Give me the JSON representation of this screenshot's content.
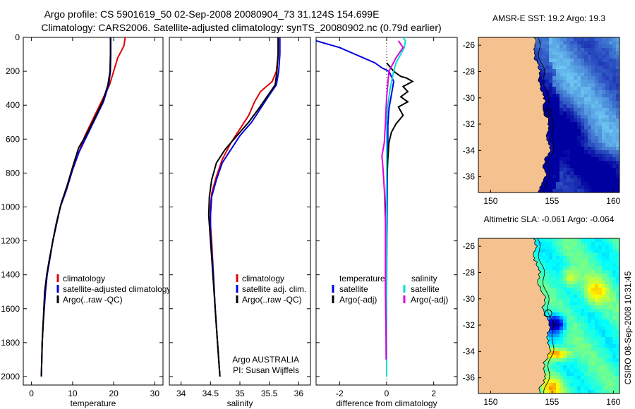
{
  "header": {
    "line1": "Argo profile: CS 5901619_50 02-Sep-2008 20080904_73 31.124S 154.699E",
    "line2": "Climatology: CARS2006. Satellite-adjusted climatology: synTS_20080902.nc (0.79d earlier)"
  },
  "chart_data": [
    {
      "type": "line",
      "panel": "temperature",
      "xlabel": "temperature",
      "ylabel": "",
      "xlim": [
        -2,
        32
      ],
      "ylim": [
        2050,
        0
      ],
      "xticks": [
        0,
        10,
        20,
        30
      ],
      "yticks": [
        0,
        200,
        400,
        600,
        800,
        1000,
        1200,
        1400,
        1600,
        1800,
        2000
      ],
      "legend": [
        "climatology",
        "satellite-adjusted climatology",
        "Argo(..raw -QC)"
      ],
      "series": [
        {
          "name": "climatology",
          "color": "#e00000",
          "points": [
            [
              22.8,
              0
            ],
            [
              22.5,
              50
            ],
            [
              21.0,
              120
            ],
            [
              20.0,
              200
            ],
            [
              19.0,
              280
            ],
            [
              17.0,
              380
            ],
            [
              15.0,
              480
            ],
            [
              13.0,
              580
            ],
            [
              11.5,
              680
            ],
            [
              10.0,
              780
            ],
            [
              8.5,
              900
            ],
            [
              7.0,
              1000
            ],
            [
              6.0,
              1100
            ],
            [
              5.2,
              1200
            ],
            [
              4.5,
              1300
            ],
            [
              3.8,
              1400
            ],
            [
              3.4,
              1500
            ],
            [
              3.1,
              1600
            ],
            [
              2.8,
              1700
            ],
            [
              2.6,
              1800
            ],
            [
              2.5,
              1900
            ],
            [
              2.4,
              2000
            ]
          ]
        },
        {
          "name": "satellite-adjusted climatology",
          "color": "#0000e0",
          "points": [
            [
              19.3,
              0
            ],
            [
              19.3,
              100
            ],
            [
              19.2,
              200
            ],
            [
              18.8,
              280
            ],
            [
              17.5,
              380
            ],
            [
              15.5,
              480
            ],
            [
              13.5,
              580
            ],
            [
              11.5,
              680
            ],
            [
              10.0,
              780
            ],
            [
              8.5,
              900
            ],
            [
              7.0,
              1000
            ],
            [
              6.0,
              1100
            ],
            [
              5.2,
              1200
            ],
            [
              4.5,
              1300
            ],
            [
              3.8,
              1400
            ],
            [
              3.4,
              1500
            ],
            [
              3.1,
              1600
            ],
            [
              2.8,
              1700
            ],
            [
              2.6,
              1800
            ],
            [
              2.5,
              1900
            ],
            [
              2.4,
              2000
            ]
          ]
        },
        {
          "name": "Argo(..raw -QC)",
          "color": "#000000",
          "points": [
            [
              19.2,
              0
            ],
            [
              19.2,
              100
            ],
            [
              19.1,
              200
            ],
            [
              18.6,
              280
            ],
            [
              17.3,
              380
            ],
            [
              15.3,
              480
            ],
            [
              13.2,
              580
            ],
            [
              11.5,
              650
            ],
            [
              10.2,
              750
            ],
            [
              8.6,
              880
            ],
            [
              7.2,
              980
            ],
            [
              6.1,
              1100
            ],
            [
              5.2,
              1200
            ],
            [
              4.4,
              1300
            ],
            [
              3.7,
              1400
            ],
            [
              3.2,
              1500
            ],
            [
              3.0,
              1600
            ],
            [
              2.8,
              1700
            ],
            [
              2.6,
              1800
            ],
            [
              2.5,
              1900
            ],
            [
              2.4,
              2000
            ]
          ]
        }
      ]
    },
    {
      "type": "line",
      "panel": "salinity",
      "xlabel": "salinity",
      "xlim": [
        33.8,
        36.2
      ],
      "ylim": [
        2050,
        0
      ],
      "xticks": [
        34,
        34.5,
        35,
        35.5,
        36
      ],
      "legend": [
        "climatology",
        "satellite adj. clim.",
        "Argo(..raw -QC)"
      ],
      "annotation": [
        "Argo AUSTRALIA",
        "PI: Susan Wijffels"
      ],
      "series": [
        {
          "name": "climatology",
          "color": "#e00000",
          "points": [
            [
              35.65,
              0
            ],
            [
              35.65,
              100
            ],
            [
              35.62,
              200
            ],
            [
              35.55,
              260
            ],
            [
              35.35,
              320
            ],
            [
              35.25,
              380
            ],
            [
              35.15,
              460
            ],
            [
              35.0,
              540
            ],
            [
              34.85,
              620
            ],
            [
              34.7,
              720
            ],
            [
              34.6,
              820
            ],
            [
              34.52,
              920
            ],
            [
              34.5,
              1000
            ],
            [
              34.5,
              1100
            ],
            [
              34.52,
              1200
            ],
            [
              34.55,
              1400
            ],
            [
              34.58,
              1600
            ],
            [
              34.62,
              1800
            ],
            [
              34.66,
              2000
            ]
          ]
        },
        {
          "name": "satellite adj. clim.",
          "color": "#0000e0",
          "points": [
            [
              35.68,
              0
            ],
            [
              35.68,
              100
            ],
            [
              35.66,
              200
            ],
            [
              35.62,
              280
            ],
            [
              35.5,
              340
            ],
            [
              35.35,
              420
            ],
            [
              35.2,
              500
            ],
            [
              35.0,
              580
            ],
            [
              34.85,
              660
            ],
            [
              34.7,
              740
            ],
            [
              34.6,
              840
            ],
            [
              34.52,
              940
            ],
            [
              34.5,
              1050
            ],
            [
              34.5,
              1150
            ],
            [
              34.52,
              1250
            ],
            [
              34.55,
              1400
            ],
            [
              34.58,
              1600
            ],
            [
              34.62,
              1800
            ],
            [
              34.66,
              2000
            ]
          ]
        },
        {
          "name": "Argo(..raw -QC)",
          "color": "#000000",
          "points": [
            [
              35.65,
              0
            ],
            [
              35.65,
              100
            ],
            [
              35.63,
              200
            ],
            [
              35.6,
              280
            ],
            [
              35.48,
              340
            ],
            [
              35.32,
              420
            ],
            [
              35.15,
              500
            ],
            [
              34.95,
              580
            ],
            [
              34.75,
              660
            ],
            [
              34.6,
              740
            ],
            [
              34.52,
              840
            ],
            [
              34.48,
              940
            ],
            [
              34.47,
              1050
            ],
            [
              34.49,
              1150
            ],
            [
              34.51,
              1250
            ],
            [
              34.54,
              1400
            ],
            [
              34.58,
              1600
            ],
            [
              34.62,
              1800
            ],
            [
              34.66,
              2000
            ]
          ]
        }
      ]
    },
    {
      "type": "line",
      "panel": "difference",
      "xlabel": "difference from climatology",
      "xlim": [
        -3,
        3
      ],
      "ylim": [
        2050,
        0
      ],
      "xticks": [
        -2,
        0,
        2
      ],
      "legend": [
        "temperature",
        "satellite",
        "Argo(-adj)",
        "salinity",
        "satellite",
        "Argo(-adj)"
      ],
      "series": [
        {
          "name": "temperature satellite",
          "color": "#0000e0",
          "points": [
            [
              -3.0,
              20
            ],
            [
              -2.0,
              60
            ],
            [
              -1.0,
              120
            ],
            [
              -0.5,
              150
            ],
            [
              -0.2,
              180
            ],
            [
              0.1,
              200
            ],
            [
              0.3,
              260
            ],
            [
              0.2,
              340
            ],
            [
              0.1,
              420
            ],
            [
              0.05,
              520
            ],
            [
              0.05,
              620
            ],
            [
              0.03,
              800
            ],
            [
              0.02,
              1000
            ],
            [
              0.01,
              1200
            ],
            [
              0.0,
              1500
            ],
            [
              0.0,
              2000
            ]
          ]
        },
        {
          "name": "temperature Argo(-adj)",
          "color": "#000000",
          "points": [
            [
              0.0,
              150
            ],
            [
              0.3,
              200
            ],
            [
              0.6,
              230
            ],
            [
              0.85,
              240
            ],
            [
              1.1,
              260
            ],
            [
              0.7,
              290
            ],
            [
              0.9,
              320
            ],
            [
              0.6,
              350
            ],
            [
              0.9,
              380
            ],
            [
              0.5,
              410
            ],
            [
              0.7,
              460
            ],
            [
              0.4,
              510
            ],
            [
              0.2,
              560
            ],
            [
              0.1,
              620
            ],
            [
              0.05,
              720
            ],
            [
              0.0,
              850
            ],
            [
              -0.02,
              1000
            ],
            [
              0.0,
              1200
            ],
            [
              0.0,
              1500
            ],
            [
              0.0,
              1800
            ],
            [
              0.0,
              2000
            ]
          ]
        },
        {
          "name": "salinity satellite",
          "color": "#00dddd",
          "points": [
            [
              0.7,
              0
            ],
            [
              0.8,
              20
            ],
            [
              0.75,
              60
            ],
            [
              0.6,
              100
            ],
            [
              0.4,
              150
            ],
            [
              0.3,
              200
            ],
            [
              0.15,
              300
            ],
            [
              0.05,
              400
            ],
            [
              0.0,
              500
            ],
            [
              0.0,
              700
            ],
            [
              0.0,
              900
            ],
            [
              0.0,
              1200
            ],
            [
              0.0,
              1600
            ],
            [
              0.0,
              2000
            ]
          ]
        },
        {
          "name": "salinity Argo(-adj)",
          "color": "#dd00dd",
          "points": [
            [
              0.5,
              20
            ],
            [
              0.7,
              60
            ],
            [
              0.4,
              120
            ],
            [
              0.1,
              200
            ],
            [
              0.0,
              350
            ],
            [
              -0.05,
              500
            ],
            [
              -0.1,
              620
            ],
            [
              -0.2,
              700
            ],
            [
              -0.15,
              780
            ],
            [
              -0.1,
              900
            ],
            [
              -0.05,
              1100
            ],
            [
              -0.05,
              1300
            ],
            [
              -0.05,
              1500
            ],
            [
              -0.03,
              1700
            ],
            [
              -0.02,
              1900
            ]
          ]
        }
      ]
    },
    {
      "type": "heatmap",
      "panel": "sst-map",
      "title": "AMSR-E SST: 19.2  Argo: 19.3",
      "xlim": [
        149,
        160.5
      ],
      "ylim": [
        -37.2,
        -25.4
      ],
      "xticks": [
        150,
        155,
        160
      ],
      "yticks": [
        -26,
        -28,
        -30,
        -32,
        -34,
        -36
      ],
      "marker": {
        "lon": 154.7,
        "lat": -31.1
      }
    },
    {
      "type": "heatmap",
      "panel": "sla-map",
      "title": "Altimetric SLA: -0.061  Argo: -0.064",
      "xlim": [
        149,
        160.5
      ],
      "ylim": [
        -37.2,
        -25.4
      ],
      "xticks": [
        150,
        155,
        160
      ],
      "yticks": [
        -26,
        -28,
        -30,
        -32,
        -34,
        -36
      ],
      "marker": {
        "lon": 154.7,
        "lat": -31.1
      }
    }
  ],
  "footer": {
    "stamp": "CSIRO 08-Sep-2008 10:31:45"
  },
  "colors": {
    "land": "#f5c18e",
    "sst_low": "#0000a0",
    "sst_high": "#7ee6ff",
    "sla_base": "#2ecc40"
  }
}
